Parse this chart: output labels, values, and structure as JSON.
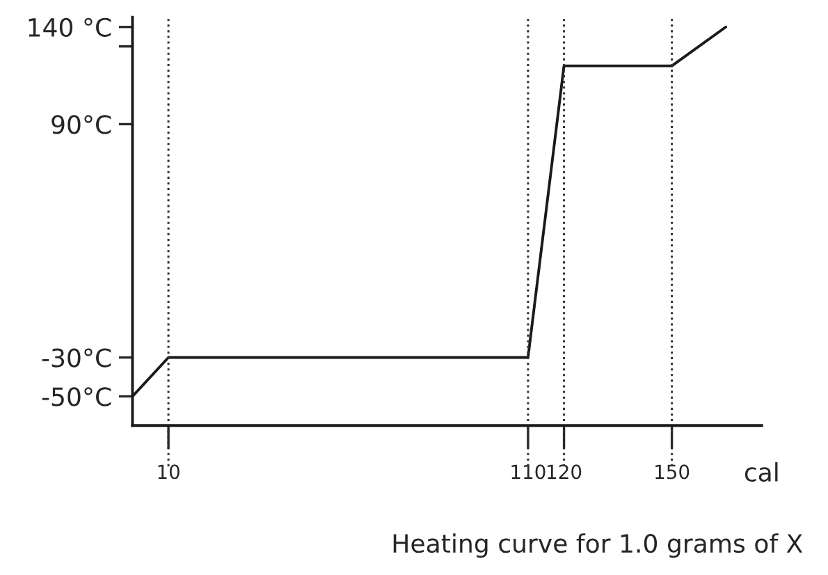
{
  "chart_data": {
    "type": "line",
    "x": [
      0,
      10,
      110,
      120,
      150,
      165
    ],
    "series": [
      {
        "color": "#1a1a1a",
        "values": [
          -50,
          -30,
          -30,
          120,
          120,
          140
        ]
      }
    ],
    "xlim": [
      0,
      175
    ],
    "ylim": [
      -65,
      145
    ],
    "xticks": [
      10,
      110,
      120,
      150
    ],
    "yticks": [
      {
        "value": -50,
        "label": "-50°C"
      },
      {
        "value": -30,
        "label": "-30°C"
      },
      {
        "value": 90,
        "label": "90°C"
      },
      {
        "value": 130,
        "label": null
      },
      {
        "value": 140,
        "label": "140 °C"
      }
    ],
    "xlabel": "cal",
    "annotations": [
      "Heating curve for 1.0 grams of X"
    ],
    "ref_lines": [
      {
        "axis": "x",
        "value": 10,
        "line_style": "dotted",
        "color": "#333333"
      },
      {
        "axis": "x",
        "value": 110,
        "line_style": "dotted",
        "color": "#333333"
      },
      {
        "axis": "x",
        "value": 120,
        "line_style": "dotted",
        "color": "#333333"
      },
      {
        "axis": "x",
        "value": 150,
        "line_style": "dotted",
        "color": "#333333"
      }
    ],
    "grid": false,
    "marker": "none",
    "line_style": "solid"
  }
}
